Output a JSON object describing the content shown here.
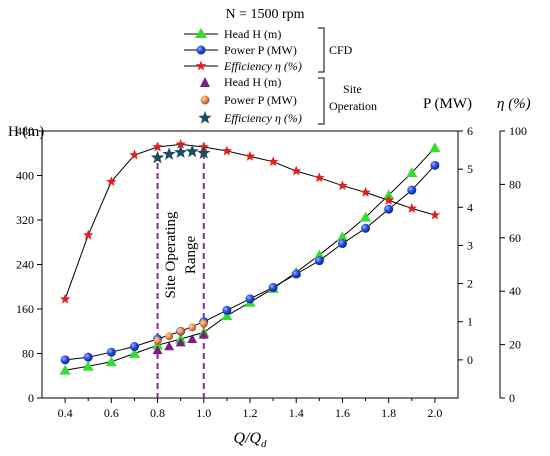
{
  "chart_data": {
    "type": "line",
    "title": "N = 1500 rpm",
    "xlabel": "Q/Q",
    "xlabel_sub": "d",
    "x_ticks": [
      "0.4",
      "0.6",
      "0.8",
      "1.0",
      "1.2",
      "1.4",
      "1.6",
      "1.8",
      "2.0"
    ],
    "xlim": [
      0.3,
      2.1
    ],
    "axes": {
      "head": {
        "label": "H (m)",
        "lim": [
          0,
          480
        ],
        "ticks": [
          "0",
          "80",
          "160",
          "240",
          "320",
          "400",
          "480"
        ]
      },
      "power": {
        "label": "P (MW)",
        "lim": [
          -1,
          6
        ],
        "ticks": [
          "0",
          "1",
          "2",
          "3",
          "4",
          "5",
          "6"
        ]
      },
      "efficiency": {
        "label": "η (%)",
        "lim": [
          0,
          100
        ],
        "ticks": [
          "0",
          "20",
          "40",
          "60",
          "80",
          "100"
        ]
      }
    },
    "legend_groups": [
      {
        "label": "CFD",
        "entries": [
          "Head H (m)",
          "Power P (MW)",
          "Efficiency  η (%)"
        ]
      },
      {
        "label_lines": [
          "Site",
          "Operation"
        ],
        "entries": [
          "Head H (m)",
          "Power P (MW)",
          "Efficiency  η (%)"
        ]
      }
    ],
    "annotation_lines": [
      "Site Operating",
      "Range"
    ],
    "range": [
      0.8,
      1.0
    ],
    "series": [
      {
        "name": "Head H (m)",
        "group": "CFD",
        "axis": "head",
        "marker": "triangle",
        "color": "#33dd33",
        "x": [
          0.4,
          0.5,
          0.6,
          0.7,
          0.8,
          0.9,
          1.0,
          1.1,
          1.2,
          1.3,
          1.4,
          1.5,
          1.6,
          1.7,
          1.8,
          1.9,
          2.0
        ],
        "y": [
          50,
          57,
          65,
          80,
          95,
          106,
          118,
          148,
          172,
          197,
          226,
          257,
          290,
          325,
          365,
          405,
          450
        ]
      },
      {
        "name": "Power P (MW)",
        "group": "CFD",
        "axis": "power",
        "marker": "circle",
        "color": "#1a3fd9",
        "x": [
          0.4,
          0.5,
          0.6,
          0.7,
          0.8,
          0.9,
          1.0,
          1.1,
          1.2,
          1.3,
          1.4,
          1.5,
          1.6,
          1.7,
          1.8,
          1.9,
          2.0
        ],
        "y": [
          0.0,
          0.07,
          0.2,
          0.35,
          0.55,
          0.75,
          1.0,
          1.3,
          1.6,
          1.9,
          2.25,
          2.6,
          3.05,
          3.45,
          3.95,
          4.45,
          5.1
        ]
      },
      {
        "name": "Efficiency  η (%)",
        "group": "CFD",
        "axis": "efficiency",
        "marker": "star",
        "color": "#e02020",
        "x": [
          0.4,
          0.5,
          0.6,
          0.7,
          0.8,
          0.9,
          1.0,
          1.1,
          1.2,
          1.3,
          1.4,
          1.5,
          1.6,
          1.7,
          1.8,
          1.9,
          2.0
        ],
        "y": [
          37,
          61,
          81,
          91,
          94,
          95,
          94,
          92.5,
          90.5,
          88.5,
          85,
          82.5,
          79.5,
          77,
          74,
          71,
          68.5
        ]
      },
      {
        "name": "Head H (m)",
        "group": "Site Operation",
        "axis": "head",
        "marker": "triangle",
        "color": "#7a1f7a",
        "x": [
          0.8,
          0.85,
          0.9,
          0.95,
          1.0
        ],
        "y": [
          86,
          93,
          100,
          106,
          114
        ]
      },
      {
        "name": "Power P (MW)",
        "group": "Site Operation",
        "axis": "power",
        "marker": "circle",
        "color": "#e6874a",
        "x": [
          0.8,
          0.85,
          0.9,
          0.95,
          1.0
        ],
        "y": [
          0.5,
          0.62,
          0.75,
          0.85,
          0.95
        ]
      },
      {
        "name": "Efficiency  η (%)",
        "group": "Site Operation",
        "axis": "efficiency",
        "marker": "star",
        "color": "#1c4a5e",
        "x": [
          0.8,
          0.85,
          0.9,
          0.95,
          1.0
        ],
        "y": [
          90,
          91.3,
          92,
          92.3,
          91.7
        ]
      }
    ]
  }
}
